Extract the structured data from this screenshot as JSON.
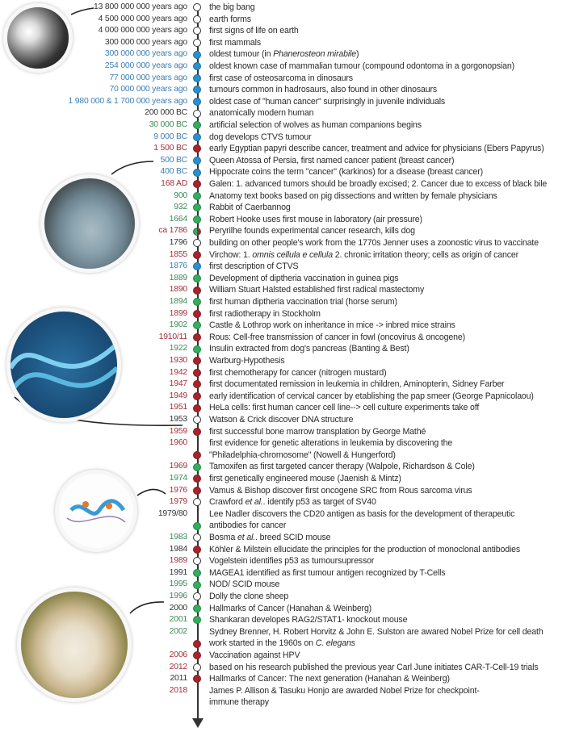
{
  "colors": {
    "blue": "#2a8fd0",
    "green": "#34ad5c",
    "red": "#a8232c",
    "line": "#333333"
  },
  "images": [
    "big-bang-photo",
    "statue-head-photo",
    "dna-helix-illustration",
    "protein-structure-illustration",
    "sheep-photo"
  ],
  "rows": [
    {
      "date": "13 800 000 000 years ago",
      "date_color": "black",
      "dot": "white",
      "text": [
        "the big bang"
      ]
    },
    {
      "date": "4 500 000 000 years ago",
      "date_color": "black",
      "dot": "white",
      "text": [
        "earth forms"
      ]
    },
    {
      "date": "4 000 000 000 years ago",
      "date_color": "black",
      "dot": "white",
      "text": [
        "first signs of life on earth"
      ]
    },
    {
      "date": "300 000 000 years ago",
      "date_color": "black",
      "dot": "white",
      "text": [
        "first mammals"
      ]
    },
    {
      "date": "300 000 000 years ago",
      "date_color": "blue",
      "dot": "blue",
      "text": [
        "oldest tumour (in ",
        "Phanerosteon mirabile",
        ")"
      ]
    },
    {
      "date": "254 000 000 years ago",
      "date_color": "blue",
      "dot": "blue",
      "text": [
        "oldest known case of mammalian tumour (compound odontoma in a gorgonopsian)"
      ]
    },
    {
      "date": "77 000 000 years ago",
      "date_color": "blue",
      "dot": "blue",
      "text": [
        "first case of osteosarcoma in dinosaurs"
      ]
    },
    {
      "date": "70 000 000 years ago",
      "date_color": "blue",
      "dot": "blue",
      "text": [
        "tumours common in hadrosaurs, also found in other dinosaurs"
      ]
    },
    {
      "date": "1 980 000 & 1 700 000 years ago",
      "date_color": "blue",
      "dot": "blue",
      "text": [
        "oldest case of \"human cancer\" surprisingly in juvenile individuals"
      ]
    },
    {
      "date": "200 000 BC",
      "date_color": "black",
      "dot": "white",
      "text": [
        "anatomically modern human"
      ]
    },
    {
      "date": "30 000 BC",
      "date_color": "green",
      "dot": "green",
      "text": [
        "artificial selection of wolves as human companions begins"
      ]
    },
    {
      "date": "9 000 BC",
      "date_color": "blue",
      "dot": "blue",
      "text": [
        "dog develops CTVS tumour"
      ]
    },
    {
      "date": "1 500 BC",
      "date_color": "red",
      "dot": "red",
      "text": [
        "early Egyptian papyri describe cancer, treatment and advice for physicians (Ebers Papyrus)"
      ]
    },
    {
      "date": "500 BC",
      "date_color": "blue",
      "dot": "blue",
      "text": [
        "Queen Atossa of Persia, first named cancer patient (breast cancer)"
      ]
    },
    {
      "date": "400 BC",
      "date_color": "blue",
      "dot": "blue",
      "text": [
        "Hippocrate coins the term \"cancer\" (karkinos) for a disease (breast cancer)"
      ]
    },
    {
      "date": "168 AD",
      "date_color": "red",
      "dot": "red",
      "text": [
        "Galen: 1. advanced tumors should be broadly excised; 2. Cancer due to excess of black bile"
      ]
    },
    {
      "date": "900",
      "date_color": "green",
      "dot": "green",
      "text": [
        "Anatomy text books based on pig dissections and written by female physicians"
      ]
    },
    {
      "date": "932",
      "date_color": "green",
      "dot": "green",
      "text": [
        "Rabbit of Caerbannog"
      ]
    },
    {
      "date": "1664",
      "date_color": "green",
      "dot": "green",
      "text": [
        "Robert Hooke uses first mouse in laboratory (air pressure)"
      ]
    },
    {
      "date": "ca 1786",
      "date_color": "red",
      "dot": "half",
      "text": [
        "Peryrilhe founds experimental cancer research, kills dog"
      ]
    },
    {
      "date": "1796",
      "date_color": "black",
      "dot": "white",
      "text": [
        "building on other people's work from the 1770s Jenner uses a zoonostic virus to vaccinate"
      ]
    },
    {
      "date": "1855",
      "date_color": "red",
      "dot": "red",
      "text": [
        "Virchow: 1. ",
        "omnis cellula e cellula",
        " 2. chronic irritation theory; cells as origin of cancer"
      ]
    },
    {
      "date": "1876",
      "date_color": "blue",
      "dot": "blue",
      "text": [
        "first description of CTVS"
      ]
    },
    {
      "date": "1889",
      "date_color": "green",
      "dot": "green",
      "text": [
        "Development of diptheria vaccination in guinea pigs"
      ]
    },
    {
      "date": "1890",
      "date_color": "red",
      "dot": "red",
      "text": [
        "William Stuart Halsted established first radical mastectomy"
      ]
    },
    {
      "date": "1894",
      "date_color": "green",
      "dot": "green",
      "text": [
        "first human diptheria vaccination trial (horse serum)"
      ]
    },
    {
      "date": "1899",
      "date_color": "red",
      "dot": "red",
      "text": [
        "first radiotherapy in Stockholm"
      ]
    },
    {
      "date": "1902",
      "date_color": "green",
      "dot": "green",
      "text": [
        "Castle & Lothrop work on inheritance in mice -> inbred mice strains"
      ]
    },
    {
      "date": "1910/11",
      "date_color": "red",
      "dot": "red",
      "text": [
        "Rous: Cell-free transmission of cancer in fowl (oncovirus & oncogene)"
      ]
    },
    {
      "date": "1922",
      "date_color": "green",
      "dot": "green",
      "text": [
        "Insulin extracted from dog's pancreas (Banting & Best)"
      ]
    },
    {
      "date": "1930",
      "date_color": "red",
      "dot": "red",
      "text": [
        "Warburg-Hypothesis"
      ]
    },
    {
      "date": "1942",
      "date_color": "red",
      "dot": "red",
      "text": [
        "first chemotherapy for cancer (nitrogen mustard)"
      ]
    },
    {
      "date": "1947",
      "date_color": "red",
      "dot": "red",
      "text": [
        "first documentated remission in leukemia in children, Aminopterin, Sidney Farber"
      ]
    },
    {
      "date": "1949",
      "date_color": "red",
      "dot": "red",
      "text": [
        "early identification of cervical cancer by etablishing the pap smeer (George Papnicolaou)"
      ]
    },
    {
      "date": "1951",
      "date_color": "red",
      "dot": "red",
      "text": [
        "HeLa cells: first human cancer cell line--> cell culture experiments take off"
      ]
    },
    {
      "date": "1953",
      "date_color": "black",
      "dot": "white",
      "text": [
        "Watson & Crick discover  DNA structure"
      ]
    },
    {
      "date": "1959",
      "date_color": "red",
      "dot": "red",
      "text": [
        "first successful bone marrow transplation by George Mathé"
      ]
    },
    {
      "date": "1960",
      "date_color": "red",
      "dot": "none",
      "text": [
        "first evidence for genetic alterations in leukemia by discovering the"
      ]
    },
    {
      "date": "",
      "date_color": "black",
      "dot": "red",
      "text": [
        "\"Philadelphia-chromosome\" (Nowell & Hungerford)"
      ]
    },
    {
      "date": "1969",
      "date_color": "red",
      "dot": "green",
      "text": [
        "Tamoxifen as first targeted cancer therapy (Walpole, Richardson & Cole)"
      ]
    },
    {
      "date": "1974",
      "date_color": "green",
      "dot": "red",
      "text": [
        "first genetically engineered mouse (Jaenish & Mintz)"
      ]
    },
    {
      "date": "1976",
      "date_color": "red",
      "dot": "red",
      "text": [
        "Vamus & Bishop discover first oncogene SRC from Rous sarcoma virus"
      ]
    },
    {
      "date": "1979",
      "date_color": "red",
      "dot": "white",
      "text": [
        "Crawford ",
        "et al.",
        ". identify p53 as target of SV40"
      ]
    },
    {
      "date": "1979/80",
      "date_color": "black",
      "dot": "none",
      "text": [
        "Lee Nadler discovers the CD20 antigen as basis for the development of therapeutic"
      ]
    },
    {
      "date": "",
      "date_color": "black",
      "dot": "green",
      "text": [
        "antibodies for cancer"
      ]
    },
    {
      "date": "1983",
      "date_color": "green",
      "dot": "white",
      "text": [
        "Bosma ",
        "et al.",
        ". breed SCID mouse"
      ]
    },
    {
      "date": "1984",
      "date_color": "black",
      "dot": "red",
      "text": [
        "Köhler & Milstein ellucidate the principles for the production of monoclonal antibodies"
      ]
    },
    {
      "date": "1989",
      "date_color": "red",
      "dot": "white",
      "text": [
        "Vogelstein identifies p53 as tumoursupressor"
      ]
    },
    {
      "date": "1991",
      "date_color": "black",
      "dot": "green",
      "text": [
        "MAGEA1 identified as first tumour antigen recognized by T-Cells"
      ]
    },
    {
      "date": "1995",
      "date_color": "green",
      "dot": "green",
      "text": [
        "NOD/ SCID mouse"
      ]
    },
    {
      "date": "1996",
      "date_color": "green",
      "dot": "white",
      "text": [
        "Dolly the clone sheep"
      ]
    },
    {
      "date": "2000",
      "date_color": "black",
      "dot": "green",
      "text": [
        "Hallmarks of Cancer (Hanahan & Weinberg)"
      ]
    },
    {
      "date": "2001",
      "date_color": "green",
      "dot": "green",
      "text": [
        "Shankaran developes RAG2/STAT1- knockout mouse"
      ]
    },
    {
      "date": "2002",
      "date_color": "green",
      "dot": "none",
      "text": [
        "Sydney Brenner, H. Robert Horvitz & John E. Sulston are awared Nobel Prize for cell death"
      ]
    },
    {
      "date": "",
      "date_color": "black",
      "dot": "red",
      "text": [
        "work started in the 1960s on ",
        "C. elegans",
        ""
      ]
    },
    {
      "date": "2006",
      "date_color": "red",
      "dot": "red",
      "text": [
        "Vaccination against HPV"
      ]
    },
    {
      "date": "2012",
      "date_color": "red",
      "dot": "white",
      "text": [
        "based on his research published the previous year Carl June initiates  CAR-T-Cell-19 trials"
      ]
    },
    {
      "date": "2011",
      "date_color": "black",
      "dot": "red",
      "text": [
        "Hallmarks of Cancer: The next generation  (Hanahan & Weinberg)"
      ]
    },
    {
      "date": "2018",
      "date_color": "red",
      "dot": "none",
      "text": [
        "James P. Allison & Tasuku Honjo are awarded Nobel Prize for checkpoint-"
      ]
    },
    {
      "date": "",
      "date_color": "black",
      "dot": "none",
      "text": [
        "immune therapy"
      ]
    }
  ]
}
